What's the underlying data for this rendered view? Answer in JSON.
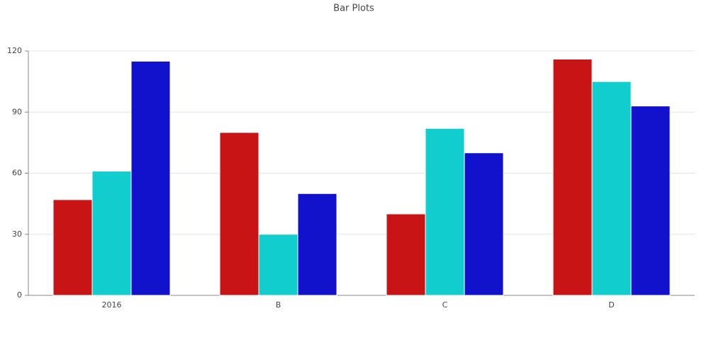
{
  "chart_data": {
    "type": "bar",
    "title": "Bar Plots",
    "categories": [
      "2016",
      "B",
      "C",
      "D"
    ],
    "series": [
      {
        "color": "#c81414",
        "values": [
          47,
          80,
          40,
          116
        ]
      },
      {
        "color": "#12cdcd",
        "values": [
          61,
          30,
          82,
          105
        ]
      },
      {
        "color": "#1212cd",
        "values": [
          115,
          50,
          70,
          93
        ]
      }
    ],
    "ylim": [
      0,
      120
    ],
    "yticks": [
      0,
      30,
      60,
      90,
      120
    ],
    "grid": true
  }
}
